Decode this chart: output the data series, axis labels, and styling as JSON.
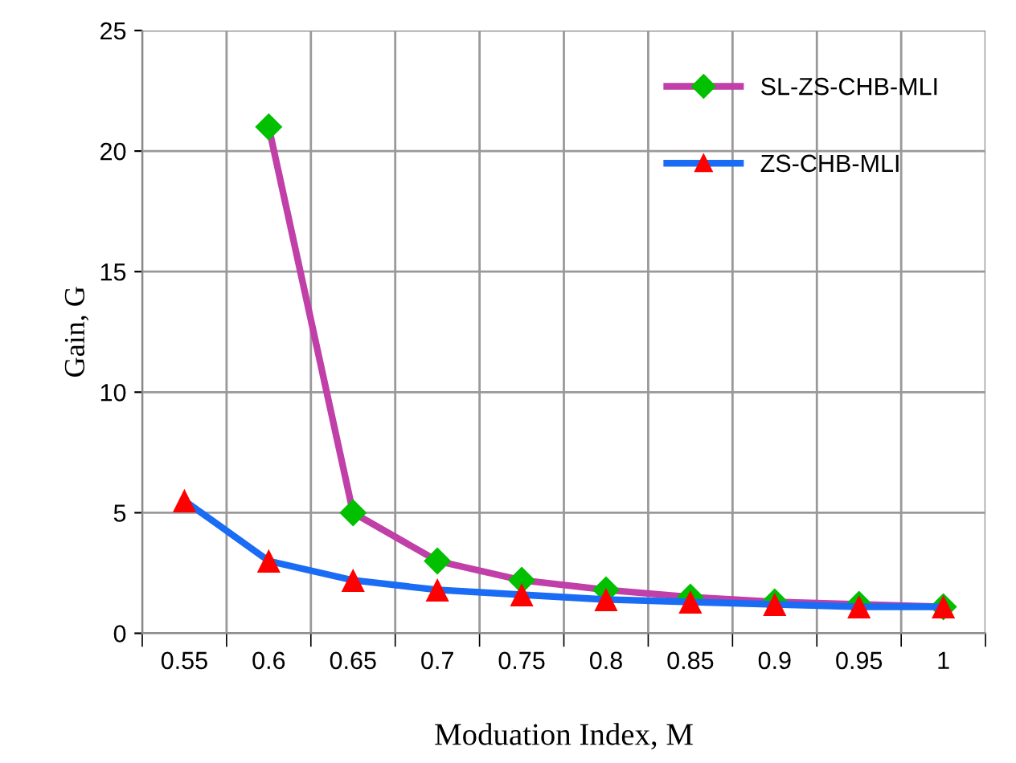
{
  "chart_data": {
    "type": "line",
    "xlabel": "Moduation Index, M",
    "ylabel": "Gain, G",
    "categories": [
      "0.55",
      "0.6",
      "0.65",
      "0.7",
      "0.75",
      "0.8",
      "0.85",
      "0.9",
      "0.95",
      "1"
    ],
    "series": [
      {
        "name": "SL-ZS-CHB-MLI",
        "color": "#c03fa8",
        "marker": "diamond",
        "colors": [
          null,
          "#00c000",
          "#00c000",
          "#00c000",
          "#00c000",
          "#00c000",
          "#00c000",
          "#00c000",
          "#00c000",
          "#00c000"
        ],
        "values": [
          null,
          21,
          5,
          3,
          2.2,
          1.8,
          1.5,
          1.3,
          1.2,
          1.1
        ]
      },
      {
        "name": "ZS-CHB-MLI",
        "color": "#1a6cf5",
        "marker": "triangle",
        "colors": [
          "#ff0000",
          "#ff0000",
          "#ff0000",
          "#ff0000",
          "#ff0000",
          "#ff0000",
          "#ff0000",
          "#ff0000",
          "#ff0000",
          "#ff0000"
        ],
        "values": [
          5.5,
          3.0,
          2.2,
          1.8,
          1.6,
          1.4,
          1.3,
          1.2,
          1.1,
          1.1
        ]
      }
    ],
    "ylim": [
      0,
      25
    ],
    "yticks": [
      0,
      5,
      10,
      15,
      20,
      25
    ],
    "grid": true,
    "legend": "top right",
    "line_style": "solid"
  }
}
